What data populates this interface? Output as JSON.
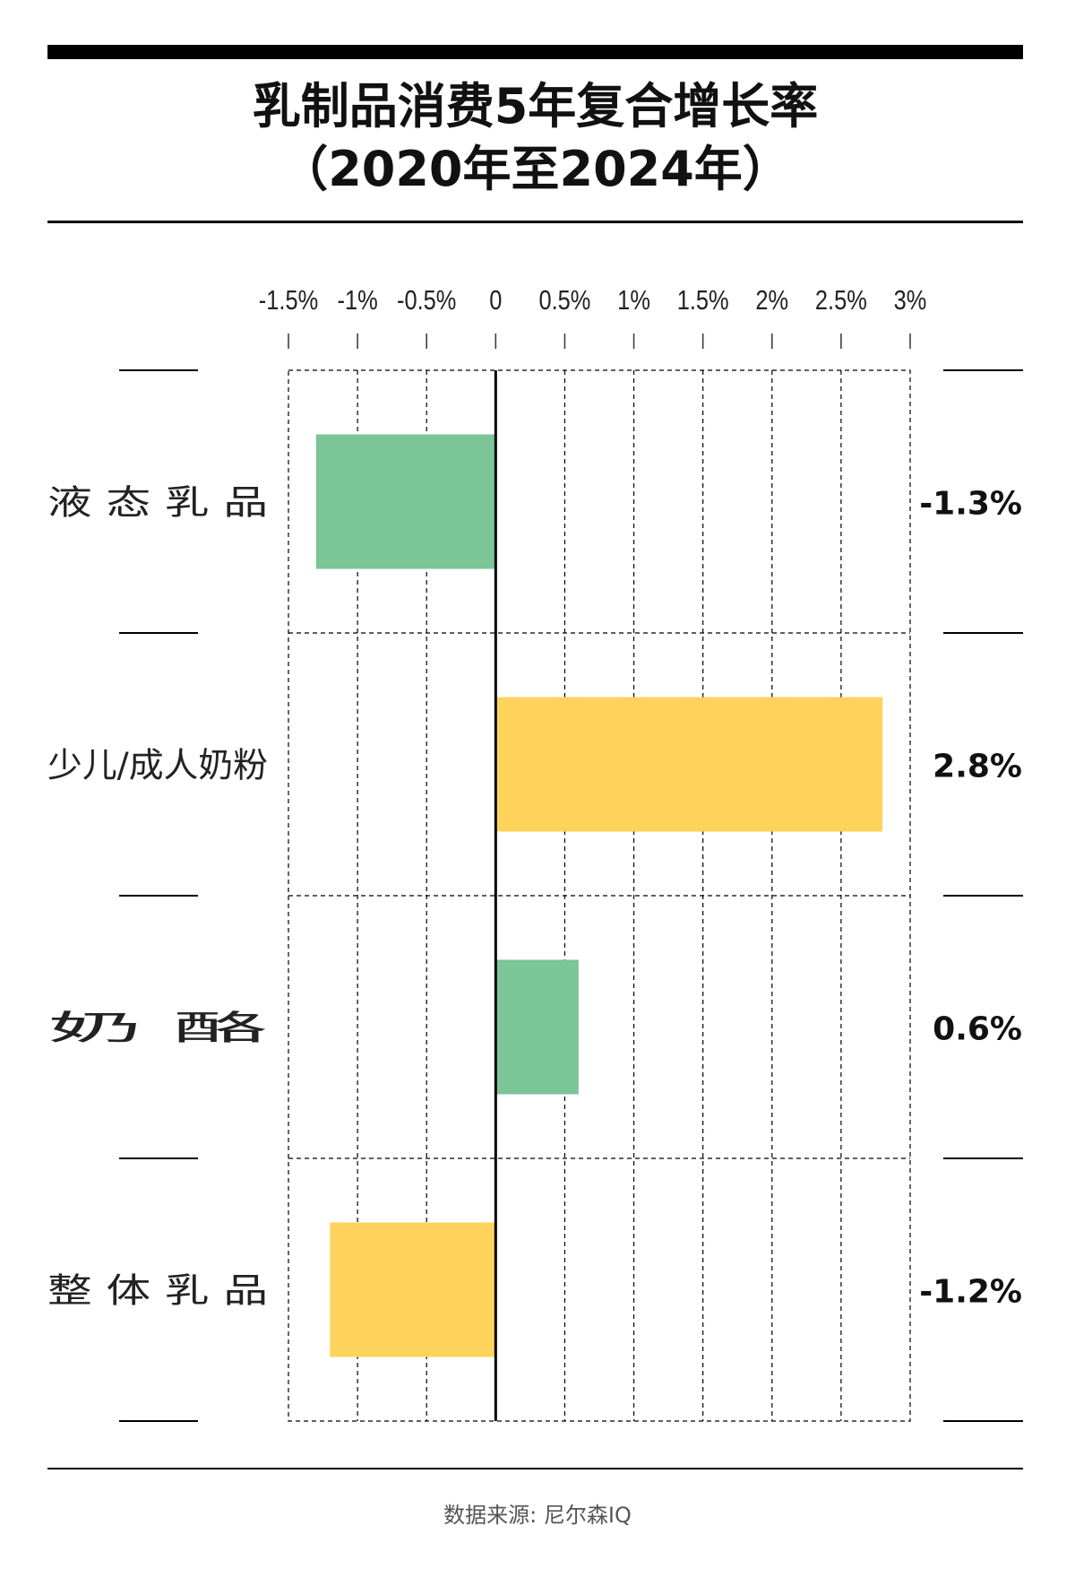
{
  "title_line1": "乳制品消费5年复合增长率",
  "title_line2": "（2020年至2024年）",
  "source": "数据来源: 尼尔森IQ",
  "colors": {
    "green": "#7BC596",
    "yellow": "#FDD35C",
    "axis": "#000000",
    "grid": "#000000"
  },
  "chart_data": {
    "type": "bar",
    "orientation": "horizontal",
    "title": "乳制品消费5年复合增长率（2020年至2024年）",
    "xlim": [
      -1.5,
      3
    ],
    "ticks": [
      -1.5,
      -1,
      -0.5,
      0,
      0.5,
      1,
      1.5,
      2,
      2.5,
      3
    ],
    "tick_labels": [
      "-1.5%",
      "-1%",
      "-0.5%",
      "0",
      "0.5%",
      "1%",
      "1.5%",
      "2%",
      "2.5%",
      "3%"
    ],
    "grid": true,
    "categories": [
      "液 态 乳 品",
      "少儿/成人奶粉",
      "奶        酪",
      "整 体 乳 品"
    ],
    "values": [
      -1.3,
      2.8,
      0.6,
      -1.2
    ],
    "value_labels": [
      "-1.3%",
      "2.8%",
      "0.6%",
      "-1.2%"
    ],
    "bar_colors": [
      "#7BC596",
      "#FDD35C",
      "#7BC596",
      "#FDD35C"
    ]
  }
}
